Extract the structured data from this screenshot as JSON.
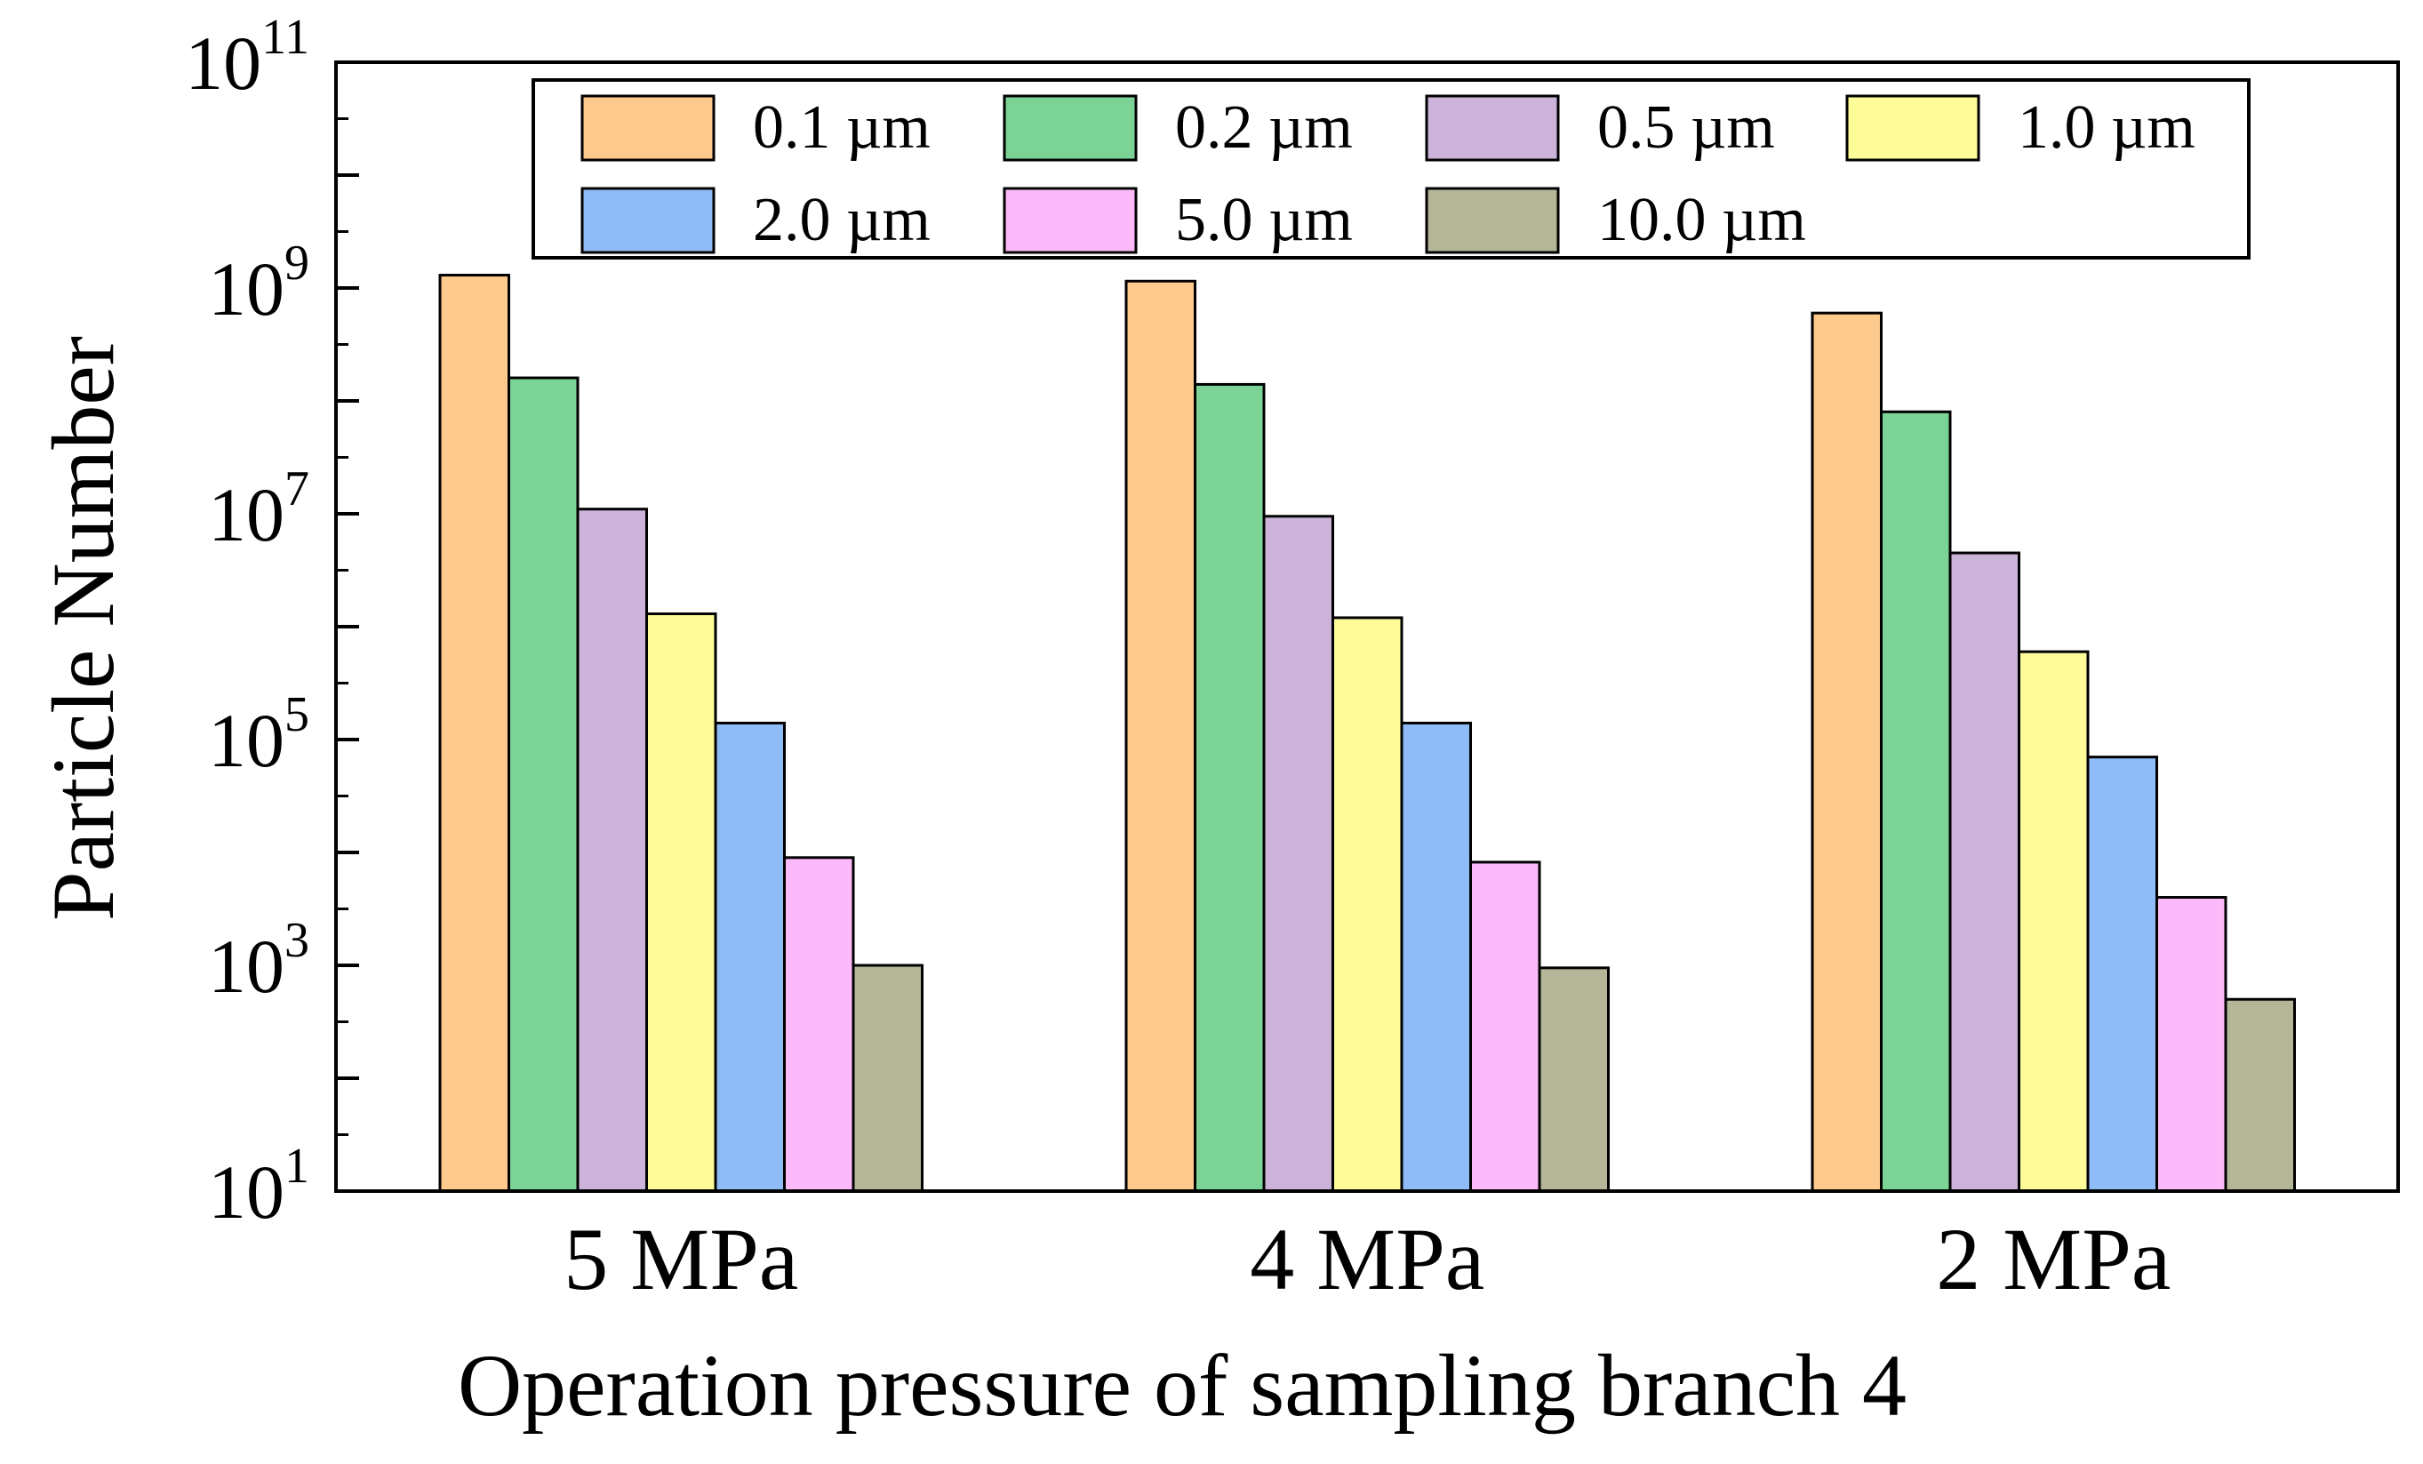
{
  "chart_data": {
    "type": "bar",
    "scale": "log",
    "title": "",
    "xlabel": "Operation pressure of sampling branch 4",
    "ylabel": "Particle Number",
    "ylim": [
      10,
      100000000000
    ],
    "yticks": [
      {
        "base": "10",
        "exp": "1",
        "value": 10
      },
      {
        "base": "10",
        "exp": "3",
        "value": 1000
      },
      {
        "base": "10",
        "exp": "5",
        "value": 100000
      },
      {
        "base": "10",
        "exp": "7",
        "value": 10000000
      },
      {
        "base": "10",
        "exp": "9",
        "value": 1000000000
      },
      {
        "base": "10",
        "exp": "11",
        "value": 100000000000
      }
    ],
    "categories": [
      "5 MPa",
      "4 MPa",
      "2 MPa"
    ],
    "legend_position": "top",
    "series": [
      {
        "name": "0.1 µm",
        "color": "#fdc98c",
        "values": [
          1300000000,
          1150000000,
          600000000
        ]
      },
      {
        "name": "0.2 µm",
        "color": "#7bd496",
        "values": [
          160000000,
          140000000,
          80000000
        ]
      },
      {
        "name": "0.5 µm",
        "color": "#cbb3d9",
        "values": [
          11000000,
          9500000,
          4500000
        ]
      },
      {
        "name": "1.0 µm",
        "color": "#fdfc99",
        "values": [
          1300000,
          1200000,
          600000
        ]
      },
      {
        "name": "2.0 µm",
        "color": "#8fbcf6",
        "values": [
          140000,
          140000,
          70000
        ]
      },
      {
        "name": "5.0 µm",
        "color": "#fcbafa",
        "values": [
          9000,
          8200,
          4000
        ]
      },
      {
        "name": "10.0 µm",
        "color": "#b5b597",
        "values": [
          1000,
          950,
          500
        ]
      }
    ]
  }
}
